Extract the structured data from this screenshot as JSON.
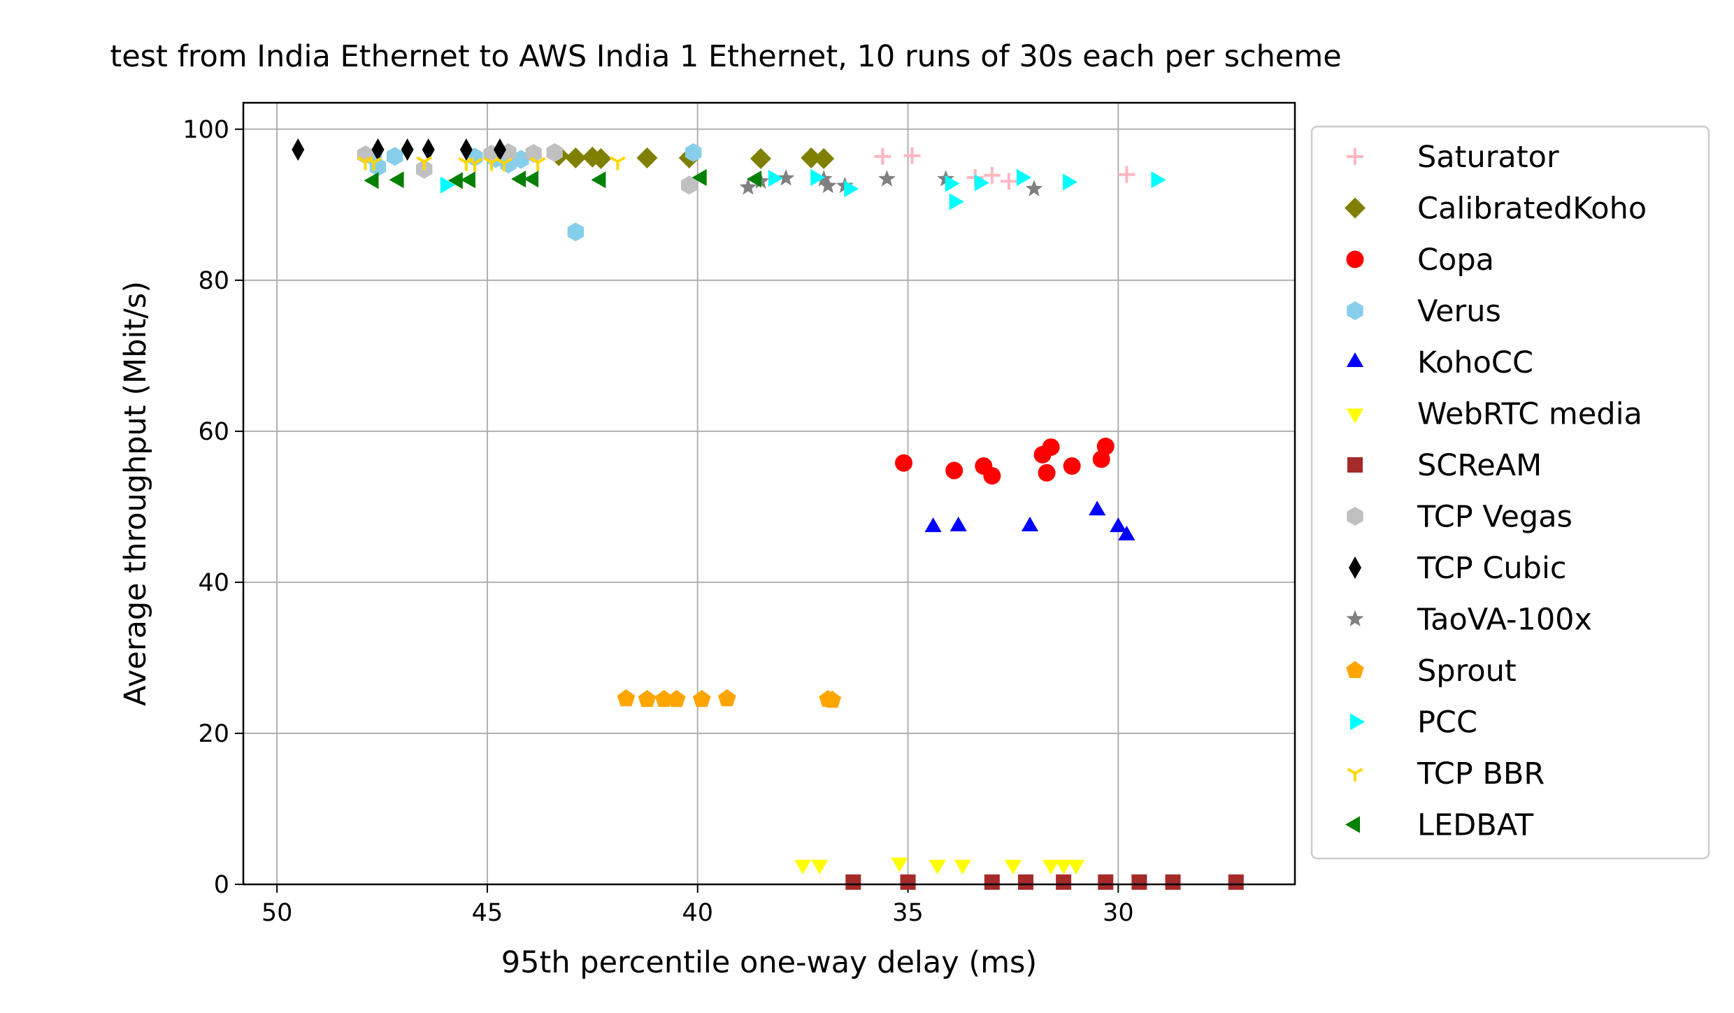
{
  "chart_data": {
    "type": "scatter",
    "title": "test from India Ethernet to AWS India 1 Ethernet, 10 runs of 30s each per scheme",
    "xlabel": "95th percentile one-way delay (ms)",
    "ylabel": "Average throughput (Mbit/s)",
    "xlim": [
      50.8,
      25.8
    ],
    "ylim": [
      0,
      103.5
    ],
    "x_inverted": true,
    "xticks": [
      50,
      45,
      40,
      35,
      30
    ],
    "yticks": [
      0,
      20,
      40,
      60,
      80,
      100
    ],
    "grid": true,
    "legend_position": "outside-right",
    "series": [
      {
        "name": "Saturator",
        "marker": "plus",
        "color": "#ffb6c1",
        "points": [
          [
            35.6,
            96.4
          ],
          [
            34.9,
            96.5
          ],
          [
            33.4,
            93.6
          ],
          [
            33.0,
            93.9
          ],
          [
            32.6,
            93.1
          ],
          [
            29.8,
            94.0
          ]
        ]
      },
      {
        "name": "CalibratedKoho",
        "marker": "diamond",
        "color": "#808000",
        "points": [
          [
            43.3,
            96.5
          ],
          [
            42.9,
            96.2
          ],
          [
            42.5,
            96.3
          ],
          [
            42.3,
            96.1
          ],
          [
            41.2,
            96.2
          ],
          [
            40.2,
            96.2
          ],
          [
            38.5,
            96.1
          ],
          [
            37.3,
            96.2
          ],
          [
            37.0,
            96.1
          ]
        ]
      },
      {
        "name": "Copa",
        "marker": "circle",
        "color": "#ff0000",
        "points": [
          [
            35.1,
            55.8
          ],
          [
            33.9,
            54.8
          ],
          [
            33.2,
            55.4
          ],
          [
            33.0,
            54.1
          ],
          [
            31.8,
            56.9
          ],
          [
            31.6,
            57.9
          ],
          [
            31.7,
            54.5
          ],
          [
            31.1,
            55.4
          ],
          [
            30.4,
            56.3
          ],
          [
            30.3,
            58.0
          ]
        ]
      },
      {
        "name": "Verus",
        "marker": "hexagon",
        "color": "#87ceeb",
        "points": [
          [
            47.7,
            96.3
          ],
          [
            47.2,
            96.4
          ],
          [
            47.6,
            95.0
          ],
          [
            45.3,
            96.3
          ],
          [
            44.8,
            96.1
          ],
          [
            44.5,
            95.4
          ],
          [
            44.2,
            96.0
          ],
          [
            42.9,
            86.4
          ],
          [
            40.1,
            96.9
          ]
        ]
      },
      {
        "name": "KohoCC",
        "marker": "triangle-up",
        "color": "#0000ff",
        "points": [
          [
            34.4,
            47.3
          ],
          [
            33.8,
            47.4
          ],
          [
            32.1,
            47.4
          ],
          [
            30.5,
            49.5
          ],
          [
            30.0,
            47.3
          ],
          [
            29.8,
            46.2
          ]
        ]
      },
      {
        "name": "WebRTC media",
        "marker": "triangle-down",
        "color": "#ffff00",
        "points": [
          [
            37.5,
            2.6
          ],
          [
            37.1,
            2.6
          ],
          [
            35.2,
            2.9
          ],
          [
            34.3,
            2.6
          ],
          [
            33.7,
            2.6
          ],
          [
            32.5,
            2.6
          ],
          [
            31.6,
            2.6
          ],
          [
            31.3,
            2.6
          ],
          [
            31.0,
            2.6
          ]
        ]
      },
      {
        "name": "SCReAM",
        "marker": "square",
        "color": "#a52a2a",
        "points": [
          [
            36.3,
            0.3
          ],
          [
            35.0,
            0.3
          ],
          [
            33.0,
            0.3
          ],
          [
            32.2,
            0.3
          ],
          [
            31.3,
            0.3
          ],
          [
            30.3,
            0.3
          ],
          [
            29.5,
            0.3
          ],
          [
            28.7,
            0.3
          ],
          [
            27.2,
            0.3
          ]
        ]
      },
      {
        "name": "TCP Vegas",
        "marker": "hexagon",
        "color": "#c0c0c0",
        "points": [
          [
            47.9,
            96.6
          ],
          [
            46.5,
            94.7
          ],
          [
            44.9,
            96.7
          ],
          [
            44.5,
            96.9
          ],
          [
            43.9,
            96.8
          ],
          [
            43.4,
            96.9
          ],
          [
            40.2,
            92.6
          ]
        ]
      },
      {
        "name": "TCP Cubic",
        "marker": "thin-diamond",
        "color": "#000000",
        "points": [
          [
            49.5,
            97.3
          ],
          [
            47.6,
            97.3
          ],
          [
            46.9,
            97.3
          ],
          [
            46.4,
            97.3
          ],
          [
            45.5,
            97.3
          ],
          [
            44.7,
            97.3
          ]
        ]
      },
      {
        "name": "TaoVA-100x",
        "marker": "star",
        "color": "#808080",
        "points": [
          [
            38.8,
            92.3
          ],
          [
            38.5,
            93.1
          ],
          [
            37.9,
            93.5
          ],
          [
            37.0,
            93.4
          ],
          [
            36.9,
            92.5
          ],
          [
            36.5,
            92.5
          ],
          [
            35.5,
            93.4
          ],
          [
            34.1,
            93.4
          ],
          [
            32.0,
            92.1
          ]
        ]
      },
      {
        "name": "Sprout",
        "marker": "pentagon",
        "color": "#ffa500",
        "points": [
          [
            41.7,
            24.6
          ],
          [
            41.2,
            24.5
          ],
          [
            40.8,
            24.5
          ],
          [
            40.5,
            24.5
          ],
          [
            39.9,
            24.5
          ],
          [
            39.3,
            24.6
          ],
          [
            36.9,
            24.5
          ],
          [
            36.8,
            24.4
          ]
        ]
      },
      {
        "name": "PCC",
        "marker": "triangle-right",
        "color": "#00ffff",
        "points": [
          [
            46.0,
            92.6
          ],
          [
            38.2,
            93.5
          ],
          [
            37.2,
            93.6
          ],
          [
            36.4,
            92.1
          ],
          [
            34.0,
            92.8
          ],
          [
            33.9,
            90.4
          ],
          [
            33.3,
            92.9
          ],
          [
            32.3,
            93.6
          ],
          [
            31.2,
            93.0
          ],
          [
            29.1,
            93.3
          ]
        ]
      },
      {
        "name": "TCP BBR",
        "marker": "tri-down",
        "color": "#ffd700",
        "points": [
          [
            47.9,
            95.7
          ],
          [
            47.7,
            95.6
          ],
          [
            46.5,
            95.7
          ],
          [
            45.5,
            95.6
          ],
          [
            45.3,
            95.5
          ],
          [
            44.9,
            95.6
          ],
          [
            44.6,
            95.5
          ],
          [
            43.8,
            95.6
          ],
          [
            41.9,
            95.7
          ]
        ]
      },
      {
        "name": "LEDBAT",
        "marker": "triangle-left",
        "color": "#008000",
        "points": [
          [
            47.7,
            93.2
          ],
          [
            47.1,
            93.3
          ],
          [
            45.7,
            93.2
          ],
          [
            45.4,
            93.3
          ],
          [
            44.2,
            93.4
          ],
          [
            43.9,
            93.4
          ],
          [
            42.3,
            93.3
          ],
          [
            39.9,
            93.6
          ],
          [
            38.6,
            93.4
          ]
        ]
      }
    ]
  }
}
